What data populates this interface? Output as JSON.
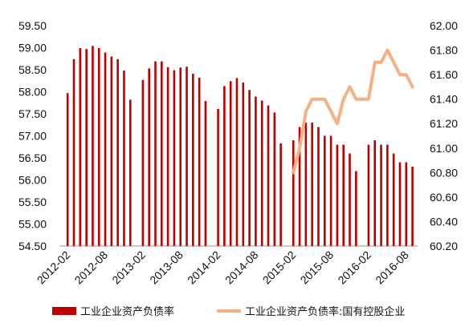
{
  "chart_data": {
    "type": "bar+line",
    "legend_position": "bottom",
    "grid": false,
    "y_left": {
      "min": 54.5,
      "max": 59.5,
      "ticks": [
        "54.50",
        "55.00",
        "55.50",
        "56.00",
        "56.50",
        "57.00",
        "57.50",
        "58.00",
        "58.50",
        "59.00",
        "59.50"
      ]
    },
    "y_right": {
      "min": 60.2,
      "max": 62.0,
      "ticks": [
        "60.20",
        "60.40",
        "60.60",
        "60.80",
        "61.00",
        "61.20",
        "61.40",
        "61.60",
        "61.80",
        "62.00"
      ]
    },
    "x_tick_labels": [
      "2012-02",
      "2012-08",
      "2013-02",
      "2013-08",
      "2014-02",
      "2014-08",
      "2015-02",
      "2015-08",
      "2016-02",
      "2016-08"
    ],
    "bar_series": {
      "name": "工业企业资产负债率",
      "color": "#c00000",
      "axis": "left",
      "x": [
        "2012-02",
        "2012-03",
        "2012-04",
        "2012-05",
        "2012-06",
        "2012-07",
        "2012-08",
        "2012-09",
        "2012-10",
        "2012-11",
        "2012-12",
        "2013-02",
        "2013-03",
        "2013-04",
        "2013-05",
        "2013-06",
        "2013-07",
        "2013-08",
        "2013-09",
        "2013-10",
        "2013-11",
        "2013-12",
        "2014-02",
        "2014-03",
        "2014-04",
        "2014-05",
        "2014-06",
        "2014-07",
        "2014-08",
        "2014-09",
        "2014-10",
        "2014-11",
        "2014-12",
        "2015-02",
        "2015-03",
        "2015-04",
        "2015-05",
        "2015-06",
        "2015-07",
        "2015-08",
        "2015-09",
        "2015-10",
        "2015-11",
        "2015-12",
        "2016-02",
        "2016-03",
        "2016-04",
        "2016-05",
        "2016-06",
        "2016-07",
        "2016-08",
        "2016-09"
      ],
      "values": [
        57.97,
        58.74,
        58.99,
        58.97,
        59.04,
        58.99,
        58.89,
        58.8,
        58.74,
        58.48,
        57.82,
        58.27,
        58.53,
        58.69,
        58.69,
        58.56,
        58.49,
        58.55,
        58.57,
        58.41,
        58.32,
        57.79,
        57.61,
        58.13,
        58.24,
        58.31,
        58.21,
        58.04,
        57.89,
        57.8,
        57.69,
        57.53,
        56.83,
        56.9,
        57.2,
        57.3,
        57.3,
        57.2,
        57.0,
        57.0,
        56.8,
        56.8,
        56.6,
        56.2,
        56.8,
        56.9,
        56.8,
        56.8,
        56.6,
        56.4,
        56.4,
        56.3
      ]
    },
    "line_series": {
      "name": "工业企业资产负债率:国有控股企业",
      "color": "#f4b183",
      "axis": "right",
      "x": [
        "2015-02",
        "2015-03",
        "2015-04",
        "2015-05",
        "2015-06",
        "2015-07",
        "2015-08",
        "2015-09",
        "2015-10",
        "2015-11",
        "2015-12",
        "2016-02",
        "2016-03",
        "2016-04",
        "2016-05",
        "2016-06",
        "2016-07",
        "2016-08",
        "2016-09"
      ],
      "values": [
        60.8,
        61.0,
        61.3,
        61.4,
        61.4,
        61.4,
        61.3,
        61.2,
        61.4,
        61.5,
        61.4,
        61.4,
        61.7,
        61.7,
        61.8,
        61.7,
        61.6,
        61.6,
        61.5
      ]
    }
  }
}
